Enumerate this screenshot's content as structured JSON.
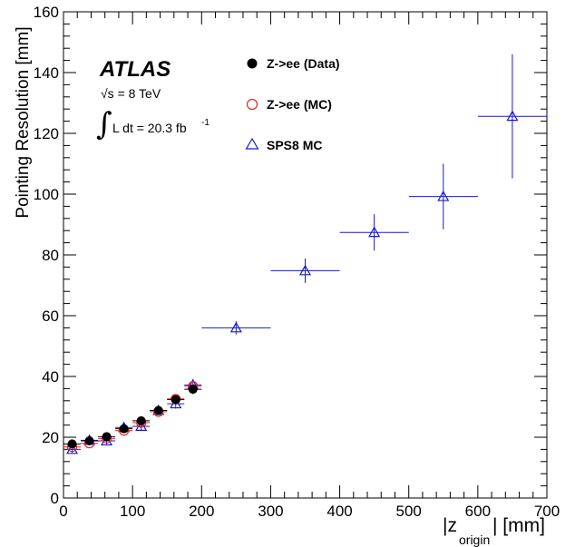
{
  "chart_data": {
    "type": "scatter",
    "ylabel": "Pointing Resolution  [mm]",
    "xlabel": {
      "left": "|z",
      "sub": "origin",
      "right": "| [mm]"
    },
    "xlim": [
      0,
      700
    ],
    "ylim": [
      0,
      160
    ],
    "x_ticks": [
      0,
      100,
      200,
      300,
      400,
      500,
      600,
      700
    ],
    "y_ticks": [
      0,
      20,
      40,
      60,
      80,
      100,
      120,
      140,
      160
    ],
    "grid": false,
    "legend_position": "top-center",
    "annotations": {
      "experiment": "ATLAS",
      "energy": "√s = 8 TeV",
      "lumi_integral": "∫",
      "lumi_text": "L dt = 20.3 fb",
      "lumi_exp": "-1"
    },
    "series": [
      {
        "name": "Z->ee (Data)",
        "marker": "filled-circle",
        "color": "#000000",
        "points": [
          {
            "x": 12.5,
            "xerr": 12.5,
            "y": 17.8,
            "yerr": 1.0
          },
          {
            "x": 37.5,
            "xerr": 12.5,
            "y": 18.8,
            "yerr": 1.0
          },
          {
            "x": 62.5,
            "xerr": 12.5,
            "y": 20.2,
            "yerr": 1.0
          },
          {
            "x": 87.5,
            "xerr": 12.5,
            "y": 22.8,
            "yerr": 1.0
          },
          {
            "x": 112.5,
            "xerr": 12.5,
            "y": 25.4,
            "yerr": 1.0
          },
          {
            "x": 137.5,
            "xerr": 12.5,
            "y": 28.8,
            "yerr": 1.0
          },
          {
            "x": 162.5,
            "xerr": 12.5,
            "y": 32.4,
            "yerr": 1.2
          },
          {
            "x": 187.5,
            "xerr": 12.5,
            "y": 35.8,
            "yerr": 1.6
          }
        ]
      },
      {
        "name": "Z->ee (MC)",
        "marker": "open-circle",
        "color": "#e8231f",
        "points": [
          {
            "x": 12.5,
            "xerr": 12.5,
            "y": 16.8,
            "yerr": 0.6
          },
          {
            "x": 37.5,
            "xerr": 12.5,
            "y": 18.0,
            "yerr": 0.6
          },
          {
            "x": 62.5,
            "xerr": 12.5,
            "y": 19.6,
            "yerr": 0.6
          },
          {
            "x": 87.5,
            "xerr": 12.5,
            "y": 22.2,
            "yerr": 0.6
          },
          {
            "x": 112.5,
            "xerr": 12.5,
            "y": 24.8,
            "yerr": 0.6
          },
          {
            "x": 137.5,
            "xerr": 12.5,
            "y": 28.4,
            "yerr": 0.7
          },
          {
            "x": 162.5,
            "xerr": 12.5,
            "y": 32.6,
            "yerr": 0.8
          },
          {
            "x": 187.5,
            "xerr": 12.5,
            "y": 36.8,
            "yerr": 1.0
          }
        ]
      },
      {
        "name": "SPS8 MC",
        "marker": "open-triangle",
        "color": "#1a1acc",
        "points": [
          {
            "x": 12.5,
            "xerr": 12.5,
            "y": 16.0,
            "yerr": 1.2
          },
          {
            "x": 37.5,
            "xerr": 12.5,
            "y": 19.0,
            "yerr": 1.2
          },
          {
            "x": 62.5,
            "xerr": 12.5,
            "y": 18.8,
            "yerr": 1.2
          },
          {
            "x": 87.5,
            "xerr": 12.5,
            "y": 23.2,
            "yerr": 1.2
          },
          {
            "x": 112.5,
            "xerr": 12.5,
            "y": 23.6,
            "yerr": 1.3
          },
          {
            "x": 137.5,
            "xerr": 12.5,
            "y": 28.8,
            "yerr": 1.4
          },
          {
            "x": 162.5,
            "xerr": 12.5,
            "y": 31.0,
            "yerr": 1.6
          },
          {
            "x": 187.5,
            "xerr": 12.5,
            "y": 37.2,
            "yerr": 2.0
          },
          {
            "x": 250,
            "xerr": 50,
            "y": 56.0,
            "yerr": 2.2
          },
          {
            "x": 350,
            "xerr": 50,
            "y": 74.8,
            "yerr": 4.0
          },
          {
            "x": 450,
            "xerr": 50,
            "y": 87.4,
            "yerr": 6.0
          },
          {
            "x": 550,
            "xerr": 50,
            "y": 99.2,
            "yerr": 10.8
          },
          {
            "x": 650,
            "xerr": 50,
            "y": 125.6,
            "yerr": 20.4
          }
        ]
      }
    ]
  }
}
